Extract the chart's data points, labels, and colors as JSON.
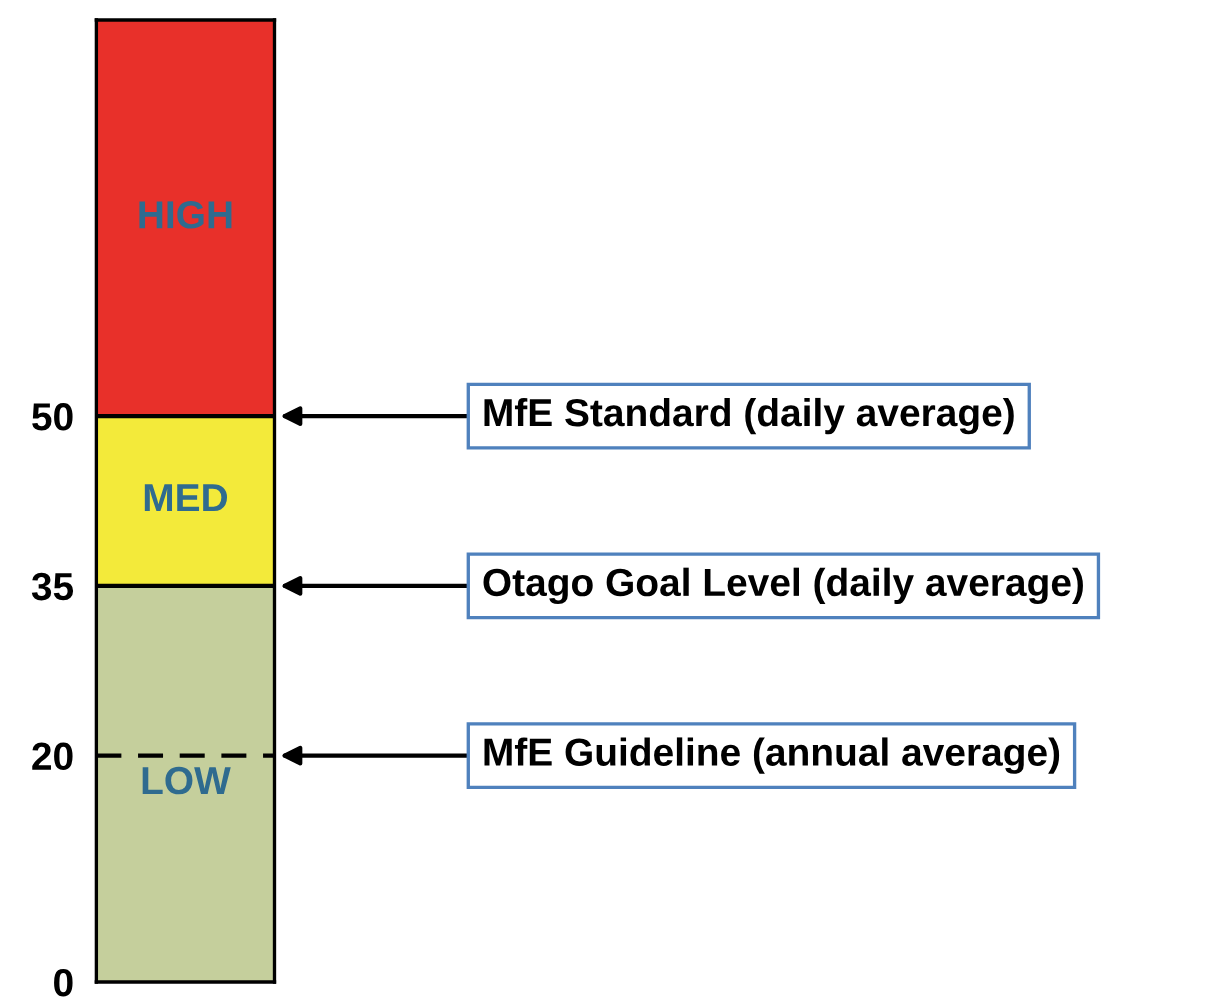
{
  "chart_data": {
    "type": "bar",
    "stacked": true,
    "categories": [
      null
    ],
    "series": [
      {
        "name": "LOW",
        "color": "#c5cf9c",
        "values": [
          35
        ]
      },
      {
        "name": "MED",
        "color": "#f3ea3a",
        "values": [
          15
        ]
      },
      {
        "name": "HIGH",
        "color": "#e8302a",
        "values": [
          35
        ]
      }
    ],
    "ylim": [
      0,
      85
    ],
    "yticks": [
      0,
      20,
      35,
      50
    ],
    "grid": false,
    "legend": false,
    "ref_lines": [
      {
        "axis": "y",
        "value": 50,
        "label": "MfE Standard (daily average)",
        "color": "#000000",
        "line_style": "solid"
      },
      {
        "axis": "y",
        "value": 35,
        "label": "Otago Goal Level (daily average)",
        "color": "#000000",
        "line_style": "solid"
      },
      {
        "axis": "y",
        "value": 20,
        "label": "MfE Guideline (annual average)",
        "color": "#000000",
        "line_style": "dashed"
      }
    ]
  }
}
